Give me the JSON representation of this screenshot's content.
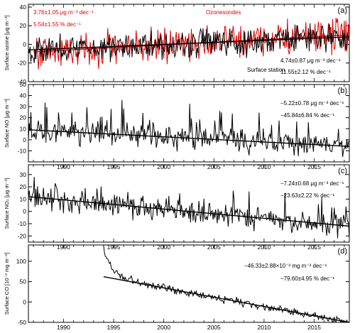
{
  "chart_data": [
    {
      "type": "line",
      "panel_label": "(a)",
      "ylabel": "Surface ozone [μg m⁻³]",
      "xlim": [
        1986.5,
        2018.5
      ],
      "ylim": [
        -40,
        43
      ],
      "yticks": [
        -40,
        -20,
        0,
        20,
        40
      ],
      "xticks": [
        1990,
        1995,
        2000,
        2005,
        2010,
        2015
      ],
      "xticklabels": [
        "",
        "",
        "",
        "",
        "",
        ""
      ],
      "series": [
        {
          "name": "Ozonesondes",
          "color": "#e00000",
          "anomaly_amplitude": 20,
          "start_year": 1987.0,
          "end_year": 2018.5,
          "trend_start": -8.0,
          "trend_end": 10.0
        },
        {
          "name": "Surface station",
          "color": "#000000",
          "anomaly_amplitude": 16,
          "start_year": 1986.5,
          "end_year": 2018.5,
          "trend_start": -6.0,
          "trend_end": 8.0
        }
      ],
      "annotations": [
        {
          "text": "3.76±1.05 μg m⁻³ dec⁻¹",
          "color": "#e00000"
        },
        {
          "text": "5.54±1.55 % dec⁻¹",
          "color": "#e00000"
        },
        {
          "text": "Ozonesondes",
          "color": "#e00000"
        },
        {
          "text": "4.74±0.87 μg m⁻³ dec⁻¹",
          "color": "#000000"
        },
        {
          "text": "Surface station",
          "color": "#000000"
        },
        {
          "text": "11.55±2.12 % dec⁻¹",
          "color": "#000000"
        }
      ]
    },
    {
      "type": "line",
      "panel_label": "(b)",
      "ylabel": "Surface NO [μg m⁻³]",
      "xlim": [
        1986.5,
        2018.5
      ],
      "ylim": [
        -20,
        50
      ],
      "yticks": [
        -10,
        0,
        10,
        20,
        30,
        40,
        50
      ],
      "xticks": [
        1990,
        1995,
        2000,
        2005,
        2010,
        2015
      ],
      "xticklabels": [
        "1990",
        "1995",
        "2000",
        "2005",
        "2010",
        "2015"
      ],
      "series": [
        {
          "name": "",
          "color": "#000000",
          "anomaly_amplitude": 12,
          "start_year": 1986.5,
          "end_year": 2018.5,
          "trend_start": 9.0,
          "trend_end": -6.0
        }
      ],
      "annotations": [
        {
          "text": "−5.22±0.78 μg m⁻³ dec⁻¹",
          "color": "#000000"
        },
        {
          "text": "−45.84±6.84 % dec⁻¹",
          "color": "#000000"
        }
      ]
    },
    {
      "type": "line",
      "panel_label": "(c)",
      "ylabel": "Surface NO₂ [μg m⁻³]",
      "xlim": [
        1986.5,
        2018.5
      ],
      "ylim": [
        -25,
        38
      ],
      "yticks": [
        -20,
        -10,
        0,
        10,
        20,
        30
      ],
      "xticks": [
        1990,
        1995,
        2000,
        2005,
        2010,
        2015
      ],
      "xticklabels": [
        "1990",
        "1995",
        "2000",
        "2005",
        "2010",
        "2015"
      ],
      "series": [
        {
          "name": "",
          "color": "#000000",
          "anomaly_amplitude": 10,
          "start_year": 1986.5,
          "end_year": 2018.5,
          "trend_start": 12.0,
          "trend_end": -12.0
        }
      ],
      "annotations": [
        {
          "text": "−7.24±0.68 μg m⁻³ dec⁻¹",
          "color": "#000000"
        },
        {
          "text": "−23.63±2.22 % dec⁻¹",
          "color": "#000000"
        }
      ]
    },
    {
      "type": "line",
      "panel_label": "(d)",
      "ylabel": "Surface CO [10⁻² mg m⁻³]",
      "xlim": [
        1986.5,
        2018.5
      ],
      "ylim": [
        -50,
        140
      ],
      "yticks": [
        -50,
        0,
        50,
        100
      ],
      "xticks": [
        1990,
        1995,
        2000,
        2005,
        2010,
        2015
      ],
      "xticklabels": [
        "1990",
        "1995",
        "2000",
        "2005",
        "2010",
        "2015"
      ],
      "series": [
        {
          "name": "",
          "color": "#000000",
          "anomaly_amplitude": 10,
          "start_year": 1994.0,
          "end_year": 2018.5,
          "trend_start": 62.0,
          "trend_end": -50.0
        }
      ],
      "annotations": [
        {
          "text": "−46.33±2.88×10⁻² mg m⁻³ dec⁻¹",
          "color": "#000000"
        },
        {
          "text": "−79.60±4.95 % dec⁻¹",
          "color": "#000000"
        }
      ]
    }
  ]
}
